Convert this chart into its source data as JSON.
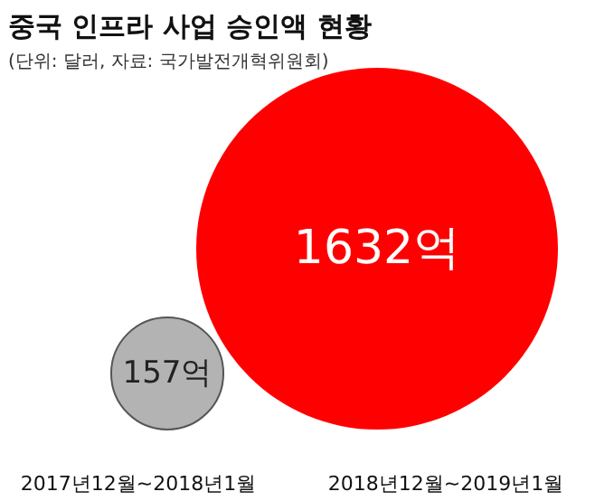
{
  "chart_data": {
    "type": "other",
    "title": "중국 인프라 사업 승인액 현황",
    "subtitle": "(단위: 달러, 자료: 국가발전개혁위원회)",
    "categories": [
      "2017년12월~2018년1월",
      "2018년12월~2019년1월"
    ],
    "values": [
      157,
      1632
    ],
    "value_labels": [
      "157억",
      "1632억"
    ],
    "colors": [
      "#b3b3b3",
      "#ff0000"
    ]
  }
}
